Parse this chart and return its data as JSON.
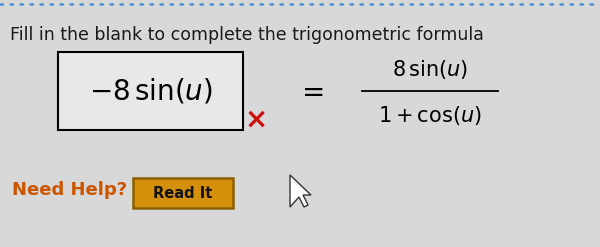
{
  "background_color": "#d8d8d8",
  "top_border_color": "#4a90d9",
  "title_text": "Fill in the blank to complete the trigonometric formula",
  "title_color": "#1a1a1a",
  "title_fontsize": 12.5,
  "box_color": "#000000",
  "box_bg": "#e8e8e8",
  "fraction_color": "#000000",
  "x_mark_color": "#cc1111",
  "need_help_text": "Need Help?",
  "need_help_color": "#cc5500",
  "need_help_fontsize": 13,
  "read_it_text": "Read It",
  "read_it_bg": "#d4900a",
  "read_it_border": "#8B6000",
  "read_it_fontsize": 10.5,
  "fig_w": 6.0,
  "fig_h": 2.47,
  "dpi": 100
}
